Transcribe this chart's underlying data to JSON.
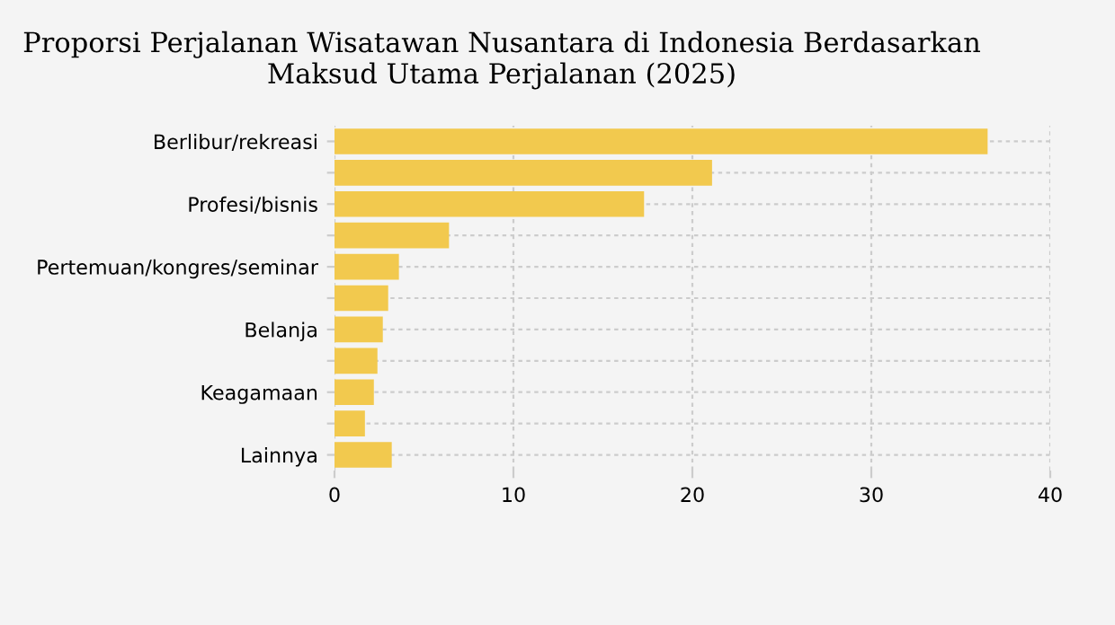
{
  "chart_data": {
    "type": "bar",
    "orientation": "horizontal",
    "title": "Proporsi Perjalanan Wisatawan Nusantara di Indonesia Berdasarkan\nMaksud Utama Perjalanan (2025)",
    "categories": [
      "Berlibur/rekreasi",
      null,
      "Profesi/bisnis",
      null,
      "Pertemuan/kongres/seminar",
      null,
      "Belanja",
      null,
      "Keagamaan",
      null,
      "Lainnya"
    ],
    "values": [
      36.5,
      21.1,
      17.3,
      6.4,
      3.6,
      3.0,
      2.7,
      2.4,
      2.2,
      1.7,
      3.2
    ],
    "color": "#f2c94e",
    "xlim": [
      0,
      40
    ],
    "xticks": [
      0,
      10,
      20,
      30,
      40
    ],
    "grid": true
  }
}
